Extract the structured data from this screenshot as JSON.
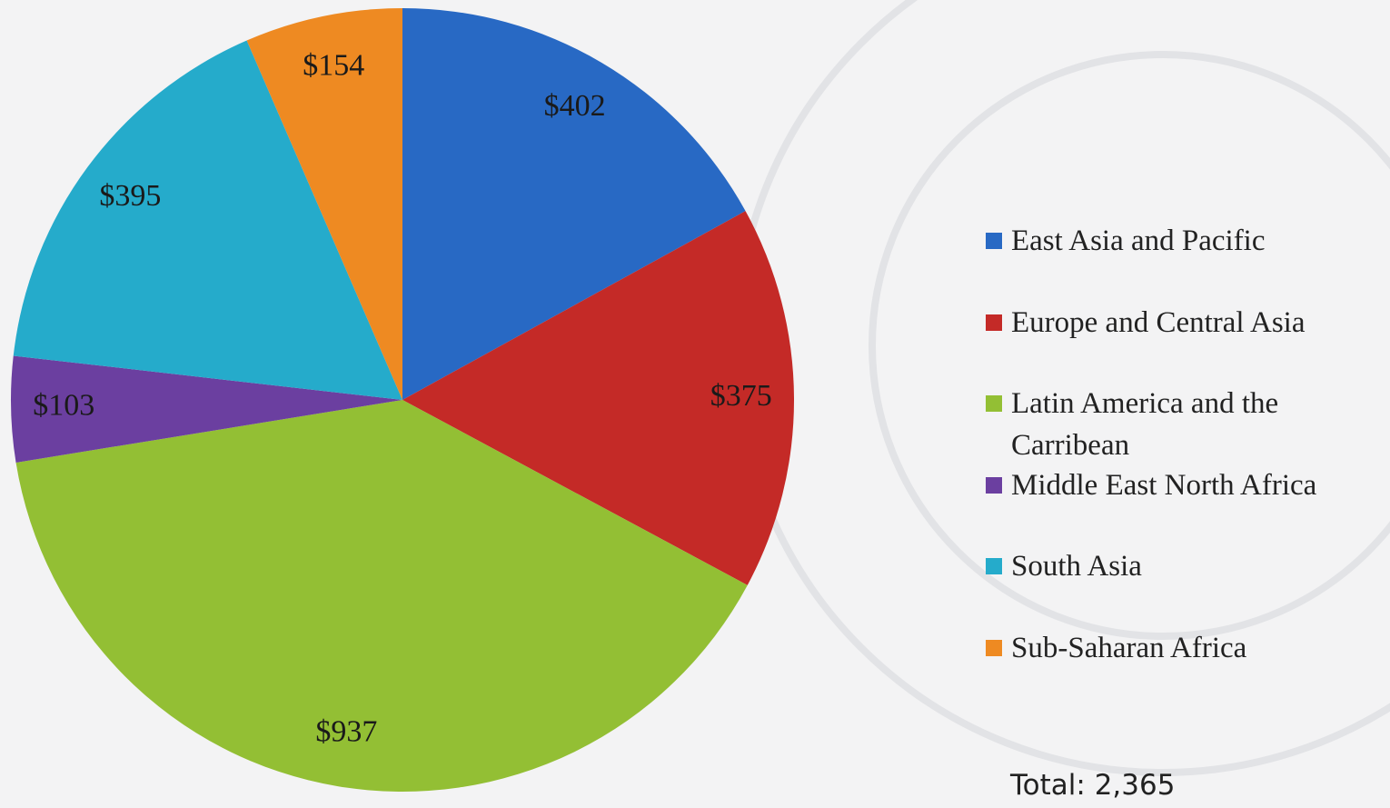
{
  "chart_data": {
    "type": "pie",
    "categories": [
      "East Asia and Pacific",
      "Europe and Central Asia",
      "Latin America and the Carribean",
      "Middle East North Africa",
      "South Asia",
      "Sub-Saharan Africa"
    ],
    "values": [
      402,
      375,
      937,
      103,
      395,
      154
    ],
    "value_labels": [
      "$402",
      "$375",
      "$937",
      "$103",
      "$395",
      "$154"
    ],
    "colors": [
      "#2869c4",
      "#c42a27",
      "#93bf34",
      "#6b3fa0",
      "#25abcb",
      "#ee8a22"
    ],
    "annotations": [
      "Total: 2,365"
    ],
    "legend": "right"
  }
}
